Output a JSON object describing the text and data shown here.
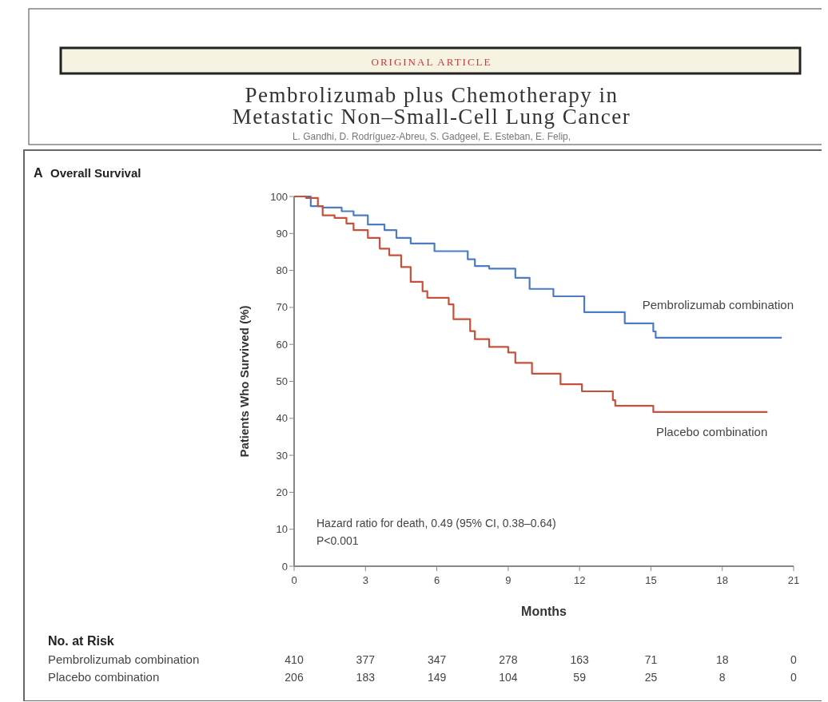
{
  "chart_data": {
    "type": "step",
    "title": "Pembrolizumab plus Chemotherapy in Metastatic Non–Small-Cell Lung Cancer",
    "subtitle": "L. Gandhi, D. Rodríguez-Abreu, S. Gadgeel, E. Esteban, E. Felip,",
    "xlabel": "Months",
    "ylabel": "Patients Who Survived (%)",
    "annotations": [
      "ORIGINAL ARTICLE",
      "A",
      "Overall Survival",
      "Hazard ratio for death, 0.49 (95% CI, 0.38–0.64)",
      "P<0.001",
      "No. at Risk",
      "410",
      "377",
      "347",
      "278",
      "163",
      "71",
      "18",
      "0",
      "206",
      "183",
      "149",
      "104",
      "59",
      "25",
      "8",
      "0"
    ],
    "xlim": [
      0,
      21
    ],
    "xticks": [
      0,
      3,
      6,
      9,
      12,
      15,
      18,
      21
    ],
    "ylim": [
      0,
      100
    ],
    "yticks": [
      0,
      10,
      20,
      30,
      40,
      50,
      60,
      70,
      80,
      90,
      100
    ],
    "grid": false,
    "line_style": "solid",
    "series": [
      {
        "name": "Pembrolizumab combination",
        "color": "#4a7cc4",
        "x": [
          0,
          0.7,
          1.2,
          2.0,
          2.5,
          3.1,
          3.8,
          4.3,
          4.9,
          5.9,
          7.3,
          7.6,
          8.2,
          9.3,
          9.9,
          10.9,
          12.2,
          13.9,
          15.1,
          15.2,
          20.5
        ],
        "values": [
          100,
          97.4,
          97,
          96,
          94.9,
          92.4,
          90.9,
          88.8,
          87.3,
          85.2,
          83,
          81.2,
          80.5,
          78,
          75,
          73,
          68.7,
          65.7,
          63.5,
          61.8,
          61.8
        ]
      },
      {
        "name": "Placebo combination",
        "color": "#c8503a",
        "x": [
          0,
          0.5,
          1.0,
          1.2,
          1.7,
          2.2,
          2.5,
          3.1,
          3.6,
          4.0,
          4.5,
          4.9,
          5.4,
          5.6,
          6.2,
          6.5,
          6.7,
          7.4,
          7.6,
          8.2,
          9.0,
          9.3,
          10.0,
          11.2,
          12.1,
          13.4,
          13.5,
          15.1,
          19.9
        ],
        "values": [
          100,
          99.6,
          97.4,
          94.9,
          94.2,
          92.7,
          90.9,
          88.8,
          85.9,
          84.1,
          80.9,
          76.9,
          74.4,
          72.6,
          72.6,
          70.8,
          66.8,
          63.6,
          61.4,
          59.3,
          57.8,
          55,
          52.1,
          49.2,
          47.3,
          44.9,
          43.4,
          41.7,
          41.7
        ]
      }
    ]
  }
}
